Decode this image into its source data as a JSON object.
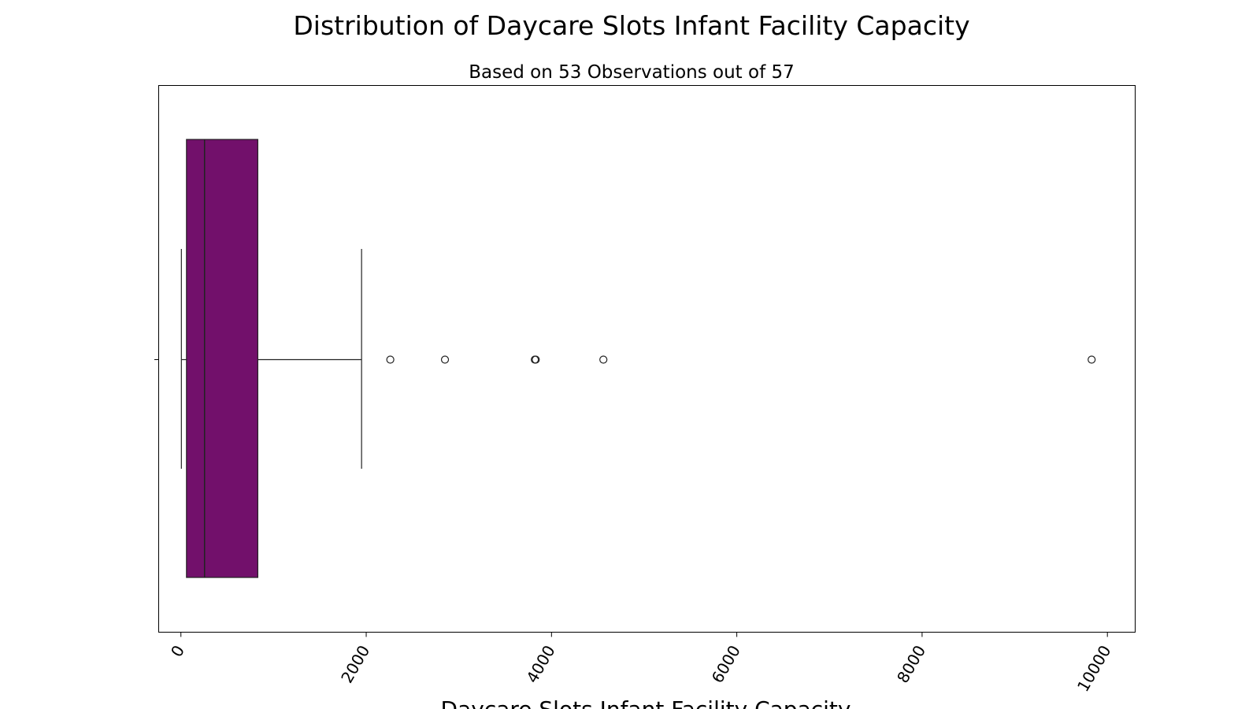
{
  "chart_data": {
    "type": "boxplot",
    "orientation": "horizontal",
    "title": "Distribution of Daycare Slots Infant Facility Capacity",
    "subtitle": "Based on 53 Observations out of 57",
    "xlabel": "Daycare Slots Infant Facility Capacity",
    "ylabel": "",
    "xlim": [
      -240,
      10300
    ],
    "xticks": [
      0,
      2000,
      4000,
      6000,
      8000,
      10000
    ],
    "xtick_rotation": -60,
    "grid": false,
    "legend": "none",
    "box": {
      "whisker_low": 5,
      "q1": 60,
      "median": 255,
      "q3": 830,
      "whisker_high": 1950
    },
    "outliers": [
      2260,
      2850,
      3820,
      3830,
      4560,
      9830
    ],
    "colors": {
      "box_fill": "#72106b",
      "line": "#222222",
      "axes": "#000000"
    }
  }
}
